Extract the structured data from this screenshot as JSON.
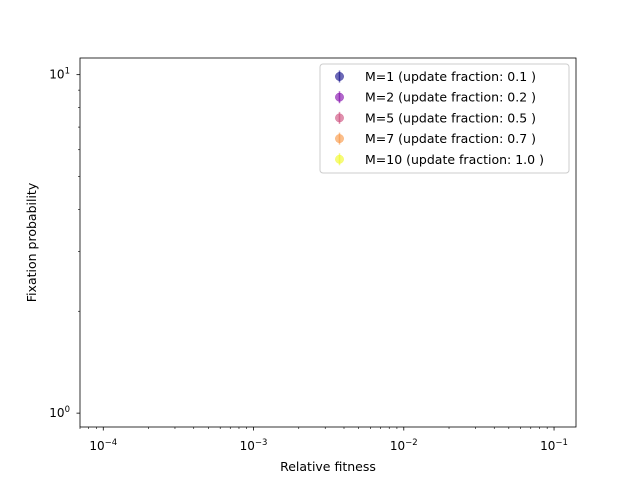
{
  "chart_data": {
    "type": "scatter",
    "title": "",
    "xlabel": "Relative fitness",
    "ylabel": "Fixation probability",
    "xscale": "log",
    "yscale": "log",
    "xlim": [
      7e-05,
      0.14
    ],
    "ylim": [
      0.91,
      11.2
    ],
    "grid": false,
    "legend_position": "top-right",
    "x_ticks": [
      {
        "value": 0.0001,
        "base": "10",
        "exp": "−4"
      },
      {
        "value": 0.001,
        "base": "10",
        "exp": "−3"
      },
      {
        "value": 0.01,
        "base": "10",
        "exp": "−2"
      },
      {
        "value": 0.1,
        "base": "10",
        "exp": "−1"
      }
    ],
    "y_ticks": [
      {
        "value": 1,
        "base": "10",
        "exp": "0"
      },
      {
        "value": 10,
        "base": "10",
        "exp": "1"
      }
    ],
    "series": [
      {
        "name": "M=1 (update fraction: 0.1 )",
        "color": "#0d0887",
        "x": [],
        "y": []
      },
      {
        "name": "M=2 (update fraction: 0.2 )",
        "color": "#7e03a8",
        "x": [],
        "y": []
      },
      {
        "name": "M=5 (update fraction: 0.5 )",
        "color": "#cc4778",
        "x": [],
        "y": []
      },
      {
        "name": "M=7 (update fraction: 0.7 )",
        "color": "#f89540",
        "x": [],
        "y": []
      },
      {
        "name": "M=10 (update fraction: 1.0 )",
        "color": "#f0f921",
        "x": [],
        "y": []
      }
    ]
  }
}
